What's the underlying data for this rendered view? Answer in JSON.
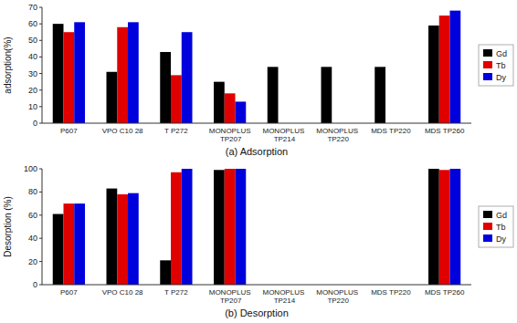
{
  "chart_data": [
    {
      "type": "bar",
      "categories": [
        "P607",
        "VPO C10 28",
        "T P272",
        "MONOPLUS TP207",
        "MONOPLUS TP214",
        "MONOPLUS TP220",
        "MDS TP220",
        "MDS TP260"
      ],
      "series": [
        {
          "name": "Gd",
          "color": "#000000",
          "values": [
            60,
            31,
            43,
            25,
            34,
            34,
            34,
            59
          ]
        },
        {
          "name": "Tb",
          "color": "#e00000",
          "values": [
            55,
            58,
            29,
            18,
            0,
            0,
            0,
            65
          ]
        },
        {
          "name": "Dy",
          "color": "#0000dd",
          "values": [
            61,
            61,
            55,
            13,
            0,
            0,
            0,
            68
          ]
        }
      ],
      "xlabel": "(a)  Adsorption",
      "ylabel": "adsorption(%)",
      "ylim": [
        0,
        70
      ],
      "yticks": [
        0,
        10,
        20,
        30,
        40,
        50,
        60,
        70
      ],
      "grid": false,
      "legend": "right"
    },
    {
      "type": "bar",
      "categories": [
        "P607",
        "VPO C10 28",
        "T P272",
        "MONOPLUS TP207",
        "MONOPLUS TP214",
        "MONOPLUS TP220",
        "MDS TP220",
        "MDS TP260"
      ],
      "series": [
        {
          "name": "Gd",
          "color": "#000000",
          "values": [
            61,
            83,
            21,
            99,
            0,
            0,
            0,
            100
          ]
        },
        {
          "name": "Tb",
          "color": "#e00000",
          "values": [
            70,
            78,
            97,
            100,
            0,
            0,
            0,
            99
          ]
        },
        {
          "name": "Dy",
          "color": "#0000dd",
          "values": [
            70,
            79,
            100,
            100,
            0,
            0,
            0,
            100
          ]
        }
      ],
      "xlabel": "(b)  Desorption",
      "ylabel": "Desorption (%)",
      "ylim": [
        0,
        100
      ],
      "yticks": [
        0,
        20,
        40,
        60,
        80,
        100
      ],
      "grid": false,
      "legend": "right"
    }
  ]
}
